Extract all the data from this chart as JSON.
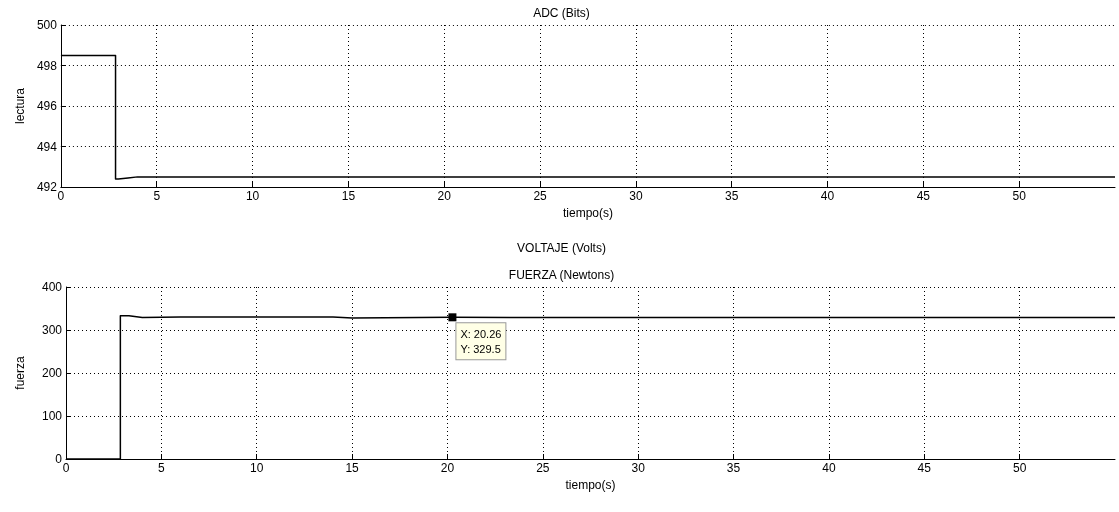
{
  "chart_data": [
    {
      "type": "line",
      "title": "ADC (Bits)",
      "xlabel": "tiempo(s)",
      "ylabel": "lectura",
      "annotations": [
        "VOLTAJE (Volts)"
      ],
      "x": [
        0,
        2.85,
        2.85,
        3.0,
        3.5,
        4.0,
        10,
        15,
        16,
        20,
        30,
        40,
        50,
        55
      ],
      "series": [
        {
          "color": "#000000",
          "values": [
            498.5,
            498.5,
            492.4,
            492.4,
            492.45,
            492.5,
            492.5,
            492.5,
            492.5,
            492.5,
            492.5,
            492.5,
            492.5,
            492.5
          ]
        }
      ],
      "xlim": [
        0,
        55
      ],
      "xticks": [
        0,
        5,
        10,
        15,
        20,
        25,
        30,
        35,
        40,
        45,
        50
      ],
      "ylim": [
        492,
        500
      ],
      "yticks": [
        492,
        494,
        496,
        498,
        500
      ],
      "grid": true,
      "marker": "none",
      "line_style": "solid"
    },
    {
      "type": "line",
      "title": "FUERZA (Newtons)",
      "xlabel": "tiempo(s)",
      "ylabel": "fuerza",
      "annotations": [
        {
          "text": "X: 20.26\nY: 329.5",
          "x": 20.26,
          "y": 329.5
        }
      ],
      "x": [
        0,
        2.85,
        2.85,
        3.3,
        4.0,
        6,
        10,
        14,
        15,
        20.26,
        30,
        40,
        50,
        55
      ],
      "series": [
        {
          "color": "#000000",
          "values": [
            0,
            0,
            333,
            333,
            329,
            330,
            330,
            330,
            328,
            329.5,
            329,
            329,
            329,
            329
          ]
        }
      ],
      "xlim": [
        0,
        55
      ],
      "xticks": [
        0,
        5,
        10,
        15,
        20,
        25,
        30,
        35,
        40,
        45,
        50
      ],
      "ylim": [
        0,
        400
      ],
      "yticks": [
        0,
        100,
        200,
        300,
        400
      ],
      "grid": true,
      "marker": "none",
      "line_style": "solid"
    }
  ]
}
